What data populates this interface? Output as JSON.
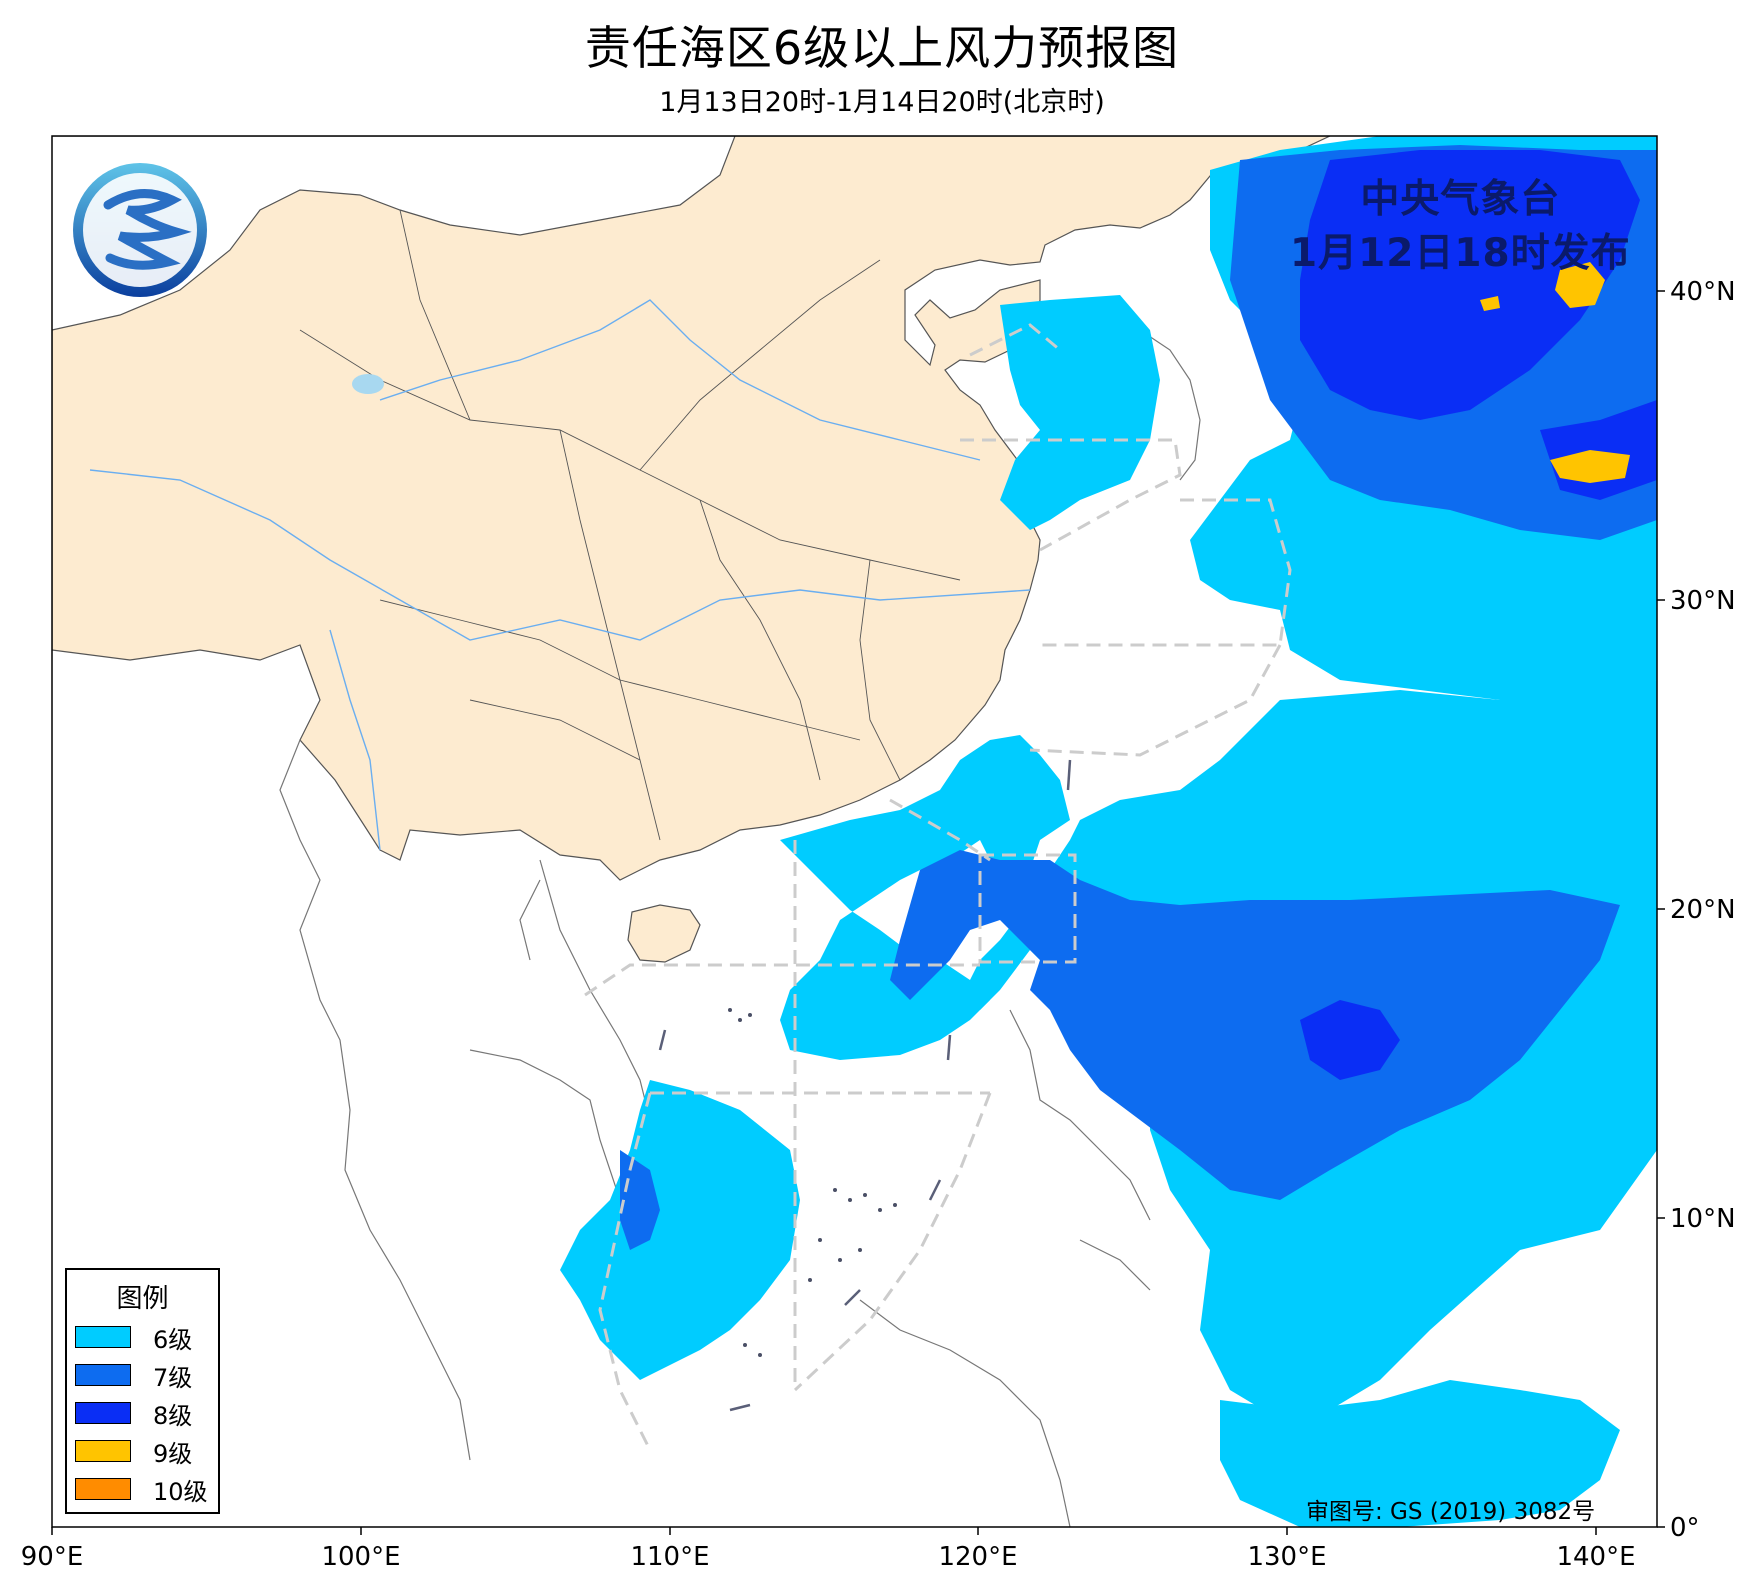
{
  "title": "责任海区6级以上风力预报图",
  "subtitle": "1月13日20时-1月14日20时(北京时)",
  "issuer": {
    "agency": "中央气象台",
    "issued_at": "1月12日18时发布"
  },
  "approval_number": "审图号: GS (2019) 3082号",
  "axes": {
    "x_ticks": [
      "90°E",
      "100°E",
      "110°E",
      "120°E",
      "130°E",
      "140°E"
    ],
    "y_ticks": [
      "0°",
      "10°N",
      "20°N",
      "30°N",
      "40°N"
    ],
    "lon_range": [
      90,
      142
    ],
    "lat_range": [
      0,
      45
    ]
  },
  "legend": {
    "title": "图例",
    "items": [
      {
        "label": "6级",
        "color": "#00ccff"
      },
      {
        "label": "7级",
        "color": "#0d6cf0"
      },
      {
        "label": "8级",
        "color": "#0a2ef5"
      },
      {
        "label": "9级",
        "color": "#ffc400"
      },
      {
        "label": "10级",
        "color": "#ff8c00"
      }
    ]
  },
  "colors": {
    "land_china": "#fdebd0",
    "ocean": "#ffffff",
    "boundary_dash": "#cccccc",
    "issuer_text": "#0a1a6b"
  },
  "logo_icon": "cma-logo-icon"
}
